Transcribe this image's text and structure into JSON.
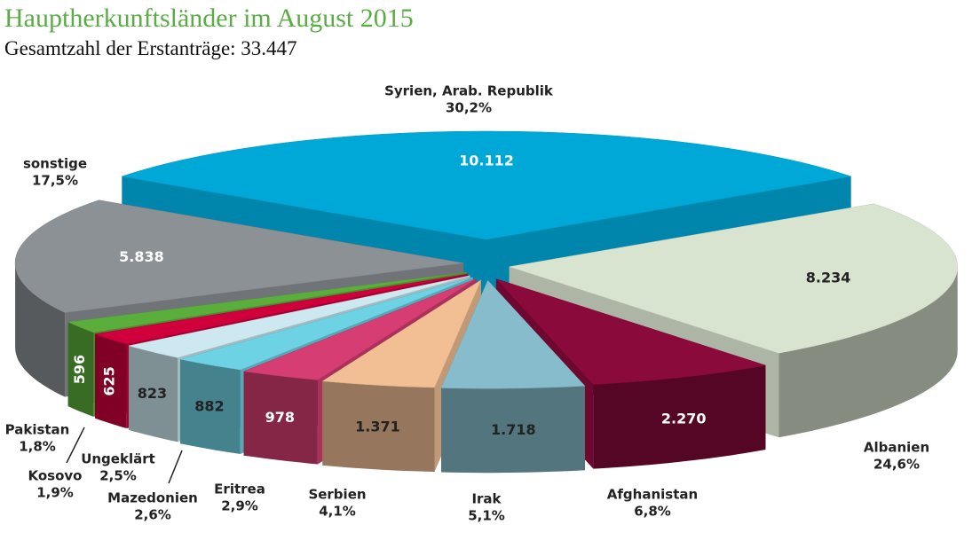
{
  "chart_data": {
    "type": "pie3d",
    "title": "Hauptherkunftsländer im August 2015",
    "subtitle": "Gesamtzahl der Erstanträge: 33.447",
    "categories": [
      "Syrien, Arab. Republik",
      "Albanien",
      "Afghanistan",
      "Irak",
      "Serbien",
      "Eritrea",
      "Mazedonien",
      "Ungeklärt",
      "Kosovo",
      "Pakistan",
      "sonstige"
    ],
    "values": [
      10112,
      8234,
      2270,
      1718,
      1371,
      978,
      882,
      823,
      625,
      596,
      5838
    ],
    "value_labels": [
      "10.112",
      "8.234",
      "2.270",
      "1.718",
      "1.371",
      "978",
      "882",
      "823",
      "625",
      "596",
      "5.838"
    ],
    "percentages": [
      30.2,
      24.6,
      6.8,
      5.1,
      4.1,
      2.9,
      2.6,
      2.5,
      1.9,
      1.8,
      17.5
    ],
    "percentage_labels": [
      "30,2%",
      "24,6%",
      "6,8%",
      "5,1%",
      "4,1%",
      "2,9%",
      "2,6%",
      "2,5%",
      "1,9%",
      "1,8%",
      "17,5%"
    ],
    "colors": [
      "#00a8d8",
      "#d8e4cf",
      "#8a0a3c",
      "#86bccb",
      "#f2bf94",
      "#d63d72",
      "#6dd2e4",
      "#cde8f0",
      "#d0003c",
      "#5bae3c",
      "#8c9196"
    ]
  }
}
